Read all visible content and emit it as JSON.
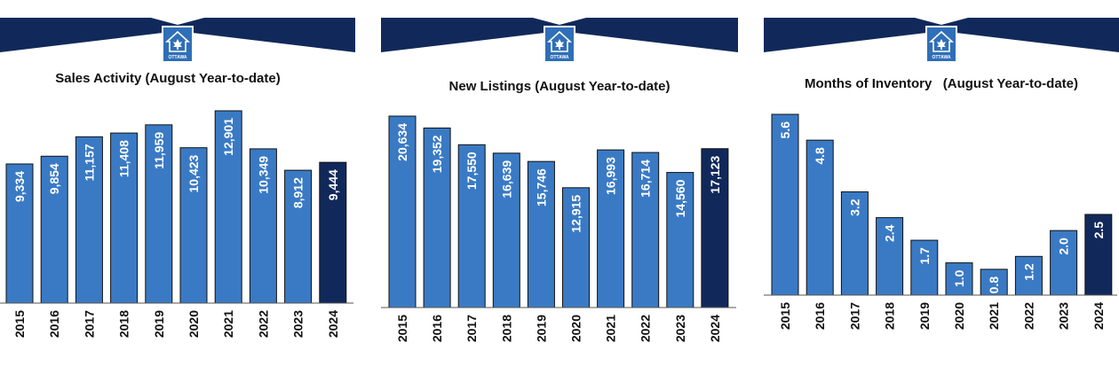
{
  "brand": {
    "logo_text": "OTTAWA",
    "logo_icon": "maple-leaf-house-icon"
  },
  "colors": {
    "header": "#11295a",
    "bar": "#3a7ac4",
    "highlight": "#11295a",
    "bar_stroke": "#111111",
    "axis": "#555555",
    "label": "#ffffff"
  },
  "chart_data": [
    {
      "type": "bar",
      "title": "Sales Activity (August Year-to-date)",
      "categories": [
        "2015",
        "2016",
        "2017",
        "2018",
        "2019",
        "2020",
        "2021",
        "2022",
        "2023",
        "2024"
      ],
      "values": [
        9334,
        9854,
        11157,
        11408,
        11959,
        10423,
        12901,
        10349,
        8912,
        9444
      ],
      "labels": [
        "9,334",
        "9,854",
        "11,157",
        "11,408",
        "11,959",
        "10,423",
        "12,901",
        "10,349",
        "8,912",
        "9,444"
      ],
      "highlight_index": 9,
      "ylim": [
        0,
        13500
      ],
      "grid": false,
      "legend": "none"
    },
    {
      "type": "bar",
      "title": "New Listings (August Year-to-date)",
      "categories": [
        "2015",
        "2016",
        "2017",
        "2018",
        "2019",
        "2020",
        "2021",
        "2022",
        "2023",
        "2024"
      ],
      "values": [
        20634,
        19352,
        17550,
        16639,
        15746,
        12915,
        16993,
        16714,
        14560,
        17123
      ],
      "labels": [
        "20,634",
        "19,352",
        "17,550",
        "16,639",
        "15,746",
        "12,915",
        "16,993",
        "16,714",
        "14,560",
        "17,123"
      ],
      "highlight_index": 9,
      "ylim": [
        0,
        21500
      ],
      "grid": false,
      "legend": "none"
    },
    {
      "type": "bar",
      "title": "Months of Inventory   (August Year-to-date)",
      "categories": [
        "2015",
        "2016",
        "2017",
        "2018",
        "2019",
        "2020",
        "2021",
        "2022",
        "2023",
        "2024"
      ],
      "values": [
        5.6,
        4.8,
        3.2,
        2.4,
        1.7,
        1.0,
        0.8,
        1.2,
        2.0,
        2.5
      ],
      "labels": [
        "5.6",
        "4.8",
        "3.2",
        "2.4",
        "1.7",
        "1.0",
        "0.8",
        "1.2",
        "2.0",
        "2.5"
      ],
      "highlight_index": 9,
      "ylim": [
        0,
        5.8
      ],
      "grid": false,
      "legend": "none"
    }
  ]
}
